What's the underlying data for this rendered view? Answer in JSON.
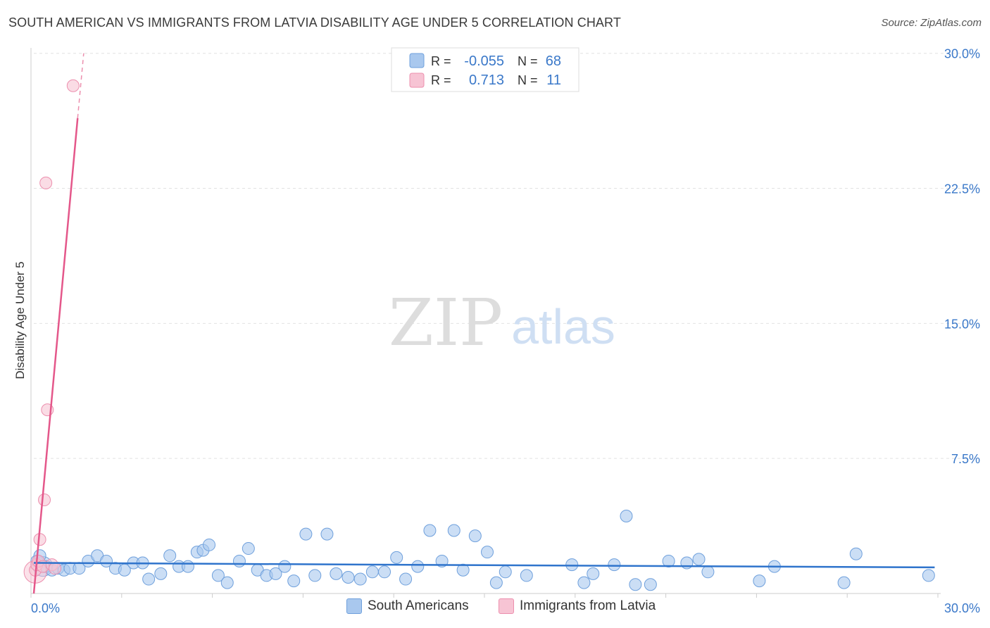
{
  "header": {
    "title": "SOUTH AMERICAN VS IMMIGRANTS FROM LATVIA DISABILITY AGE UNDER 5 CORRELATION CHART",
    "source": "Source: ZipAtlas.com"
  },
  "watermark": {
    "zip": "ZIP",
    "atlas": "atlas"
  },
  "colors": {
    "blue_fill": "#a9c8ee",
    "blue_stroke": "#6fa0dc",
    "blue_line": "#2f74cc",
    "pink_fill": "#f7c4d4",
    "pink_stroke": "#ec8fae",
    "pink_line": "#e4578a",
    "tick_color": "#3a78c9"
  },
  "legend": {
    "r_label": "R =",
    "n_label": "N =",
    "rows": [
      {
        "r": "-0.055",
        "n": "68"
      },
      {
        "r": "0.713",
        "n": "11"
      }
    ]
  },
  "chart_data": {
    "type": "scatter",
    "title": "SOUTH AMERICAN VS IMMIGRANTS FROM LATVIA DISABILITY AGE UNDER 5 CORRELATION CHART",
    "xlabel": "",
    "ylabel": "Disability Age Under 5",
    "xlim": [
      0,
      30
    ],
    "ylim": [
      0,
      30.5
    ],
    "x_tick_labels": [
      "0.0%",
      "30.0%"
    ],
    "y_ticks": [
      7.5,
      15.0,
      22.5,
      30.0
    ],
    "y_tick_labels": [
      "7.5%",
      "15.0%",
      "22.5%",
      "30.0%"
    ],
    "grid": "horizontal dashed",
    "legend_position": "top-center",
    "series": [
      {
        "name": "South Americans",
        "r": -0.055,
        "n": 68,
        "trend": {
          "x": [
            0.0,
            29.8
          ],
          "y": [
            1.7,
            1.45
          ]
        },
        "points": [
          [
            0.1,
            1.8
          ],
          [
            0.2,
            2.1
          ],
          [
            0.4,
            1.5
          ],
          [
            0.6,
            1.3
          ],
          [
            0.8,
            1.4
          ],
          [
            1.0,
            1.3
          ],
          [
            1.2,
            1.4
          ],
          [
            1.5,
            1.4
          ],
          [
            1.8,
            1.8
          ],
          [
            2.1,
            2.1
          ],
          [
            2.4,
            1.8
          ],
          [
            2.7,
            1.4
          ],
          [
            3.0,
            1.3
          ],
          [
            3.3,
            1.7
          ],
          [
            3.6,
            1.7
          ],
          [
            3.8,
            0.8
          ],
          [
            4.2,
            1.1
          ],
          [
            4.5,
            2.1
          ],
          [
            4.8,
            1.5
          ],
          [
            5.1,
            1.5
          ],
          [
            5.4,
            2.3
          ],
          [
            5.6,
            2.4
          ],
          [
            5.8,
            2.7
          ],
          [
            6.1,
            1.0
          ],
          [
            6.4,
            0.6
          ],
          [
            6.8,
            1.8
          ],
          [
            7.1,
            2.5
          ],
          [
            7.4,
            1.3
          ],
          [
            7.7,
            1.0
          ],
          [
            8.0,
            1.1
          ],
          [
            8.3,
            1.5
          ],
          [
            8.6,
            0.7
          ],
          [
            9.0,
            3.3
          ],
          [
            9.3,
            1.0
          ],
          [
            9.7,
            3.3
          ],
          [
            10.0,
            1.1
          ],
          [
            10.4,
            0.9
          ],
          [
            10.8,
            0.8
          ],
          [
            11.2,
            1.2
          ],
          [
            11.6,
            1.2
          ],
          [
            12.0,
            2.0
          ],
          [
            12.3,
            0.8
          ],
          [
            12.7,
            1.5
          ],
          [
            13.1,
            3.5
          ],
          [
            13.5,
            1.8
          ],
          [
            13.9,
            3.5
          ],
          [
            14.2,
            1.3
          ],
          [
            14.6,
            3.2
          ],
          [
            15.0,
            2.3
          ],
          [
            15.3,
            0.6
          ],
          [
            15.6,
            1.2
          ],
          [
            16.3,
            1.0
          ],
          [
            17.8,
            1.6
          ],
          [
            18.2,
            0.6
          ],
          [
            18.5,
            1.1
          ],
          [
            19.2,
            1.6
          ],
          [
            19.6,
            4.3
          ],
          [
            19.9,
            0.5
          ],
          [
            20.4,
            0.5
          ],
          [
            21.0,
            1.8
          ],
          [
            21.6,
            1.7
          ],
          [
            22.0,
            1.9
          ],
          [
            22.3,
            1.2
          ],
          [
            24.0,
            0.7
          ],
          [
            24.5,
            1.5
          ],
          [
            26.8,
            0.6
          ],
          [
            27.2,
            2.2
          ],
          [
            29.6,
            1.0
          ]
        ]
      },
      {
        "name": "Immigrants from Latvia",
        "r": 0.713,
        "n": 11,
        "trend": {
          "x": [
            0.0,
            1.45
          ],
          "y": [
            0.0,
            26.4
          ],
          "dashed_ext": {
            "x": [
              1.45,
              1.65
            ],
            "y": [
              26.4,
              30.0
            ]
          }
        },
        "points": [
          [
            0.05,
            1.3
          ],
          [
            0.1,
            1.6
          ],
          [
            0.15,
            1.8
          ],
          [
            0.2,
            3.0
          ],
          [
            0.3,
            1.5
          ],
          [
            0.35,
            5.2
          ],
          [
            0.4,
            22.8
          ],
          [
            0.45,
            10.2
          ],
          [
            0.6,
            1.6
          ],
          [
            0.7,
            1.4
          ],
          [
            1.3,
            28.2
          ]
        ]
      }
    ]
  },
  "bottom_legend": {
    "items": [
      "South Americans",
      "Immigrants from Latvia"
    ]
  }
}
